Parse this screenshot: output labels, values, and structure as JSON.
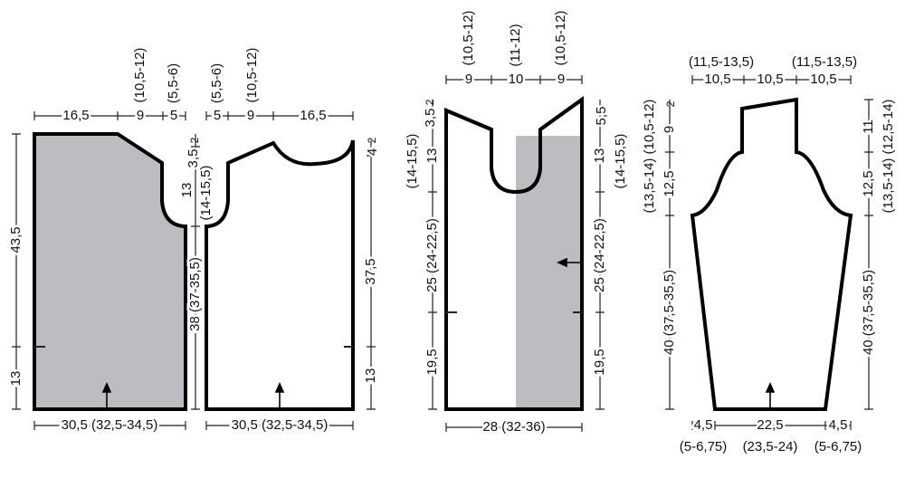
{
  "colors": {
    "shaded": "#bcbdc0",
    "outline": "#000000",
    "background": "#ffffff"
  },
  "front_left": {
    "top": [
      "16,5",
      "9",
      "5"
    ],
    "top_alt": [
      "(10,5-12)",
      "(5,5-6)"
    ],
    "left": [
      "43,5",
      "13"
    ],
    "right": [
      "3,5",
      "2",
      "13",
      "(14-15,5)",
      "38 (37-35,5)"
    ],
    "bottom": "30,5 (32,5-34,5)"
  },
  "front_right": {
    "top": [
      "5",
      "9",
      "16,5"
    ],
    "top_alt": [
      "(5,5-6)",
      "(10,5-12)"
    ],
    "right": [
      "4",
      "2",
      "37,5",
      "13"
    ],
    "bottom": "30,5 (32,5-34,5)"
  },
  "back": {
    "top": [
      "9",
      "10",
      "9"
    ],
    "top_alt": [
      "(10,5-12)",
      "(11-12)",
      "(10,5-12)"
    ],
    "left": [
      "3,5",
      "2",
      "13",
      "(14-15,5)",
      "25 (24-22,5)",
      "19,5"
    ],
    "right": [
      "5,5",
      "13",
      "(14-15,5)",
      "25 (24-22,5)",
      "19,5"
    ],
    "bottom": "28 (32-36)"
  },
  "sleeve": {
    "top": [
      "10,5",
      "10,5",
      "10,5"
    ],
    "top_alt": [
      "(11,5-13,5)",
      "(11,5-13,5)"
    ],
    "left": [
      "2",
      "9",
      "(10,5-12)",
      "12,5",
      "(13,5-14)",
      "40 (37,5-35,5)"
    ],
    "right": [
      "11",
      "(12,5-14)",
      "12,5",
      "(13,5-14)",
      "40 (37,5-35,5)"
    ],
    "bottom": [
      "4,5",
      "22,5",
      "4,5"
    ],
    "bottom_alt": [
      "(5-6,75)",
      "(23,5-24)",
      "(5-6,75)"
    ]
  }
}
